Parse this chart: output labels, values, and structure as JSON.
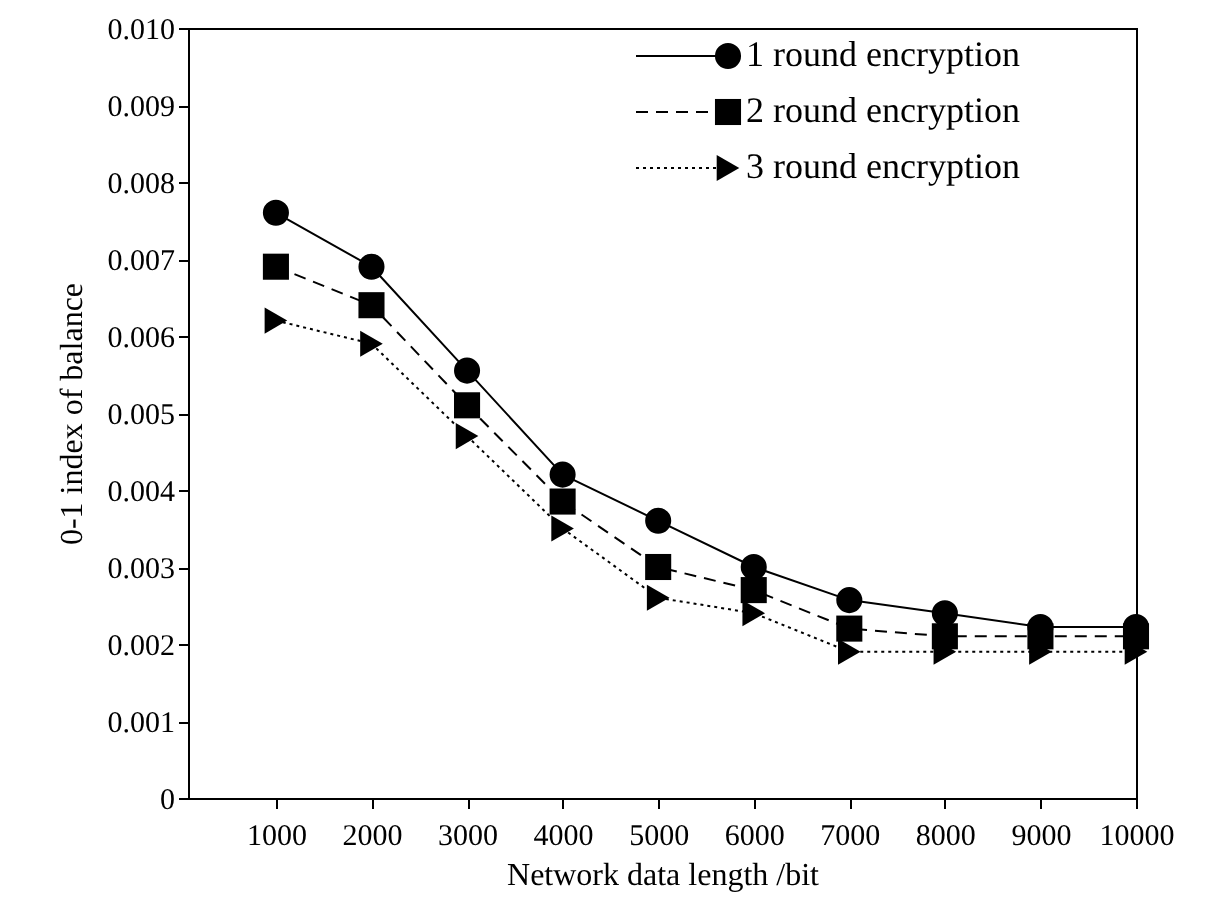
{
  "chart_data": {
    "type": "line",
    "xlabel": "Network data length /bit",
    "ylabel": "0-1 index of balance",
    "x": [
      1000,
      2000,
      3000,
      4000,
      5000,
      6000,
      7000,
      8000,
      9000,
      10000
    ],
    "series": [
      {
        "name": "1 round encryption",
        "color": "#000000",
        "marker": "circle",
        "line_style": "solid",
        "values": [
          0.0076,
          0.0069,
          0.00555,
          0.0042,
          0.0036,
          0.003,
          0.00257,
          0.0024,
          0.00222,
          0.00222
        ]
      },
      {
        "name": "2 round encryption",
        "color": "#000000",
        "marker": "square",
        "line_style": "dashed",
        "values": [
          0.0069,
          0.0064,
          0.0051,
          0.00385,
          0.003,
          0.0027,
          0.0022,
          0.0021,
          0.0021,
          0.0021
        ]
      },
      {
        "name": "3 round encryption",
        "color": "#000000",
        "marker": "triangle",
        "line_style": "dotted",
        "values": [
          0.0062,
          0.0059,
          0.0047,
          0.0035,
          0.0026,
          0.0024,
          0.0019,
          0.0019,
          0.0019,
          0.0019
        ]
      }
    ],
    "xlim": [
      80,
      10000
    ],
    "xticks": [
      1000,
      2000,
      3000,
      4000,
      5000,
      6000,
      7000,
      8000,
      9000,
      10000
    ],
    "ylim": [
      0,
      0.01
    ],
    "yticks": [
      0,
      0.001,
      0.002,
      0.003,
      0.004,
      0.005,
      0.006,
      0.007,
      0.008,
      0.009,
      {
        "value": 0.01,
        "label": "0.010"
      }
    ],
    "grid": false,
    "legend": "top right"
  }
}
